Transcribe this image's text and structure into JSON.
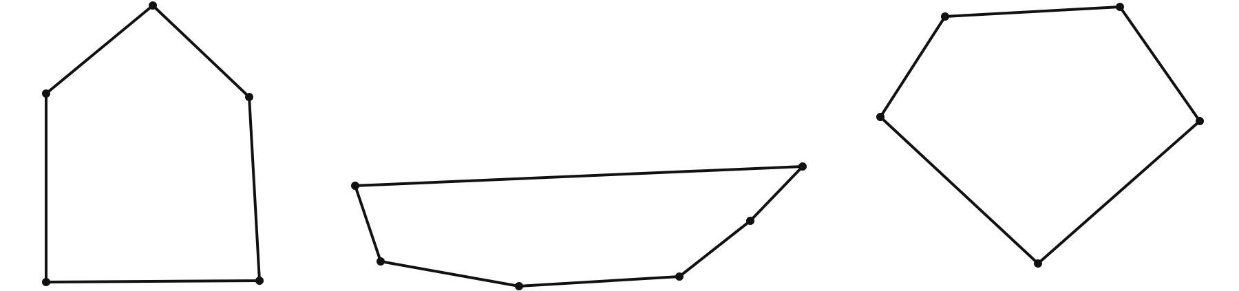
{
  "colors": {
    "background": "#ffffff",
    "stroke": "#111111",
    "vertex": "#111111"
  },
  "shapes": [
    {
      "name": "house-pentagon",
      "vertex_count": 5
    },
    {
      "name": "boat-hexagon",
      "vertex_count": 6
    },
    {
      "name": "pentagon",
      "vertex_count": 5
    }
  ]
}
